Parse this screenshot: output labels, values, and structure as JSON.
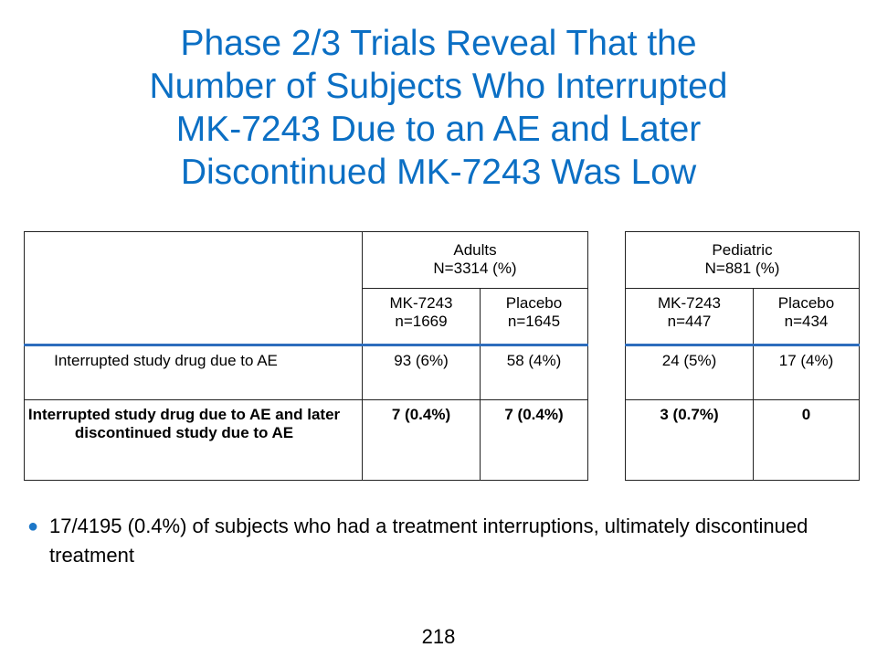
{
  "title_lines": [
    "Phase 2/3 Trials Reveal That the",
    "Number of Subjects Who Interrupted",
    "MK-7243 Due to an AE and Later",
    "Discontinued MK-7243 Was Low"
  ],
  "table": {
    "groups": [
      {
        "line1": "Adults",
        "line2": "N=3314 (%)"
      },
      {
        "line1": "Pediatric",
        "line2": "N=881 (%)"
      }
    ],
    "subheads": [
      {
        "line1": "MK-7243",
        "line2": "n=1669"
      },
      {
        "line1": "Placebo",
        "line2": "n=1645"
      },
      {
        "line1": "MK-7243",
        "line2": "n=447"
      },
      {
        "line1": "Placebo",
        "line2": "n=434"
      }
    ],
    "rows": [
      {
        "label": "Interrupted study drug due to AE",
        "values": [
          "93 (6%)",
          "58 (4%)",
          "24 (5%)",
          "17 (4%)"
        ]
      },
      {
        "label": "Interrupted study drug due to AE and later discontinued study due to AE",
        "values": [
          "7 (0.4%)",
          "7 (0.4%)",
          "3 (0.7%)",
          "0"
        ]
      }
    ]
  },
  "bullet": "17/4195 (0.4%) of subjects who had a treatment interruptions, ultimately discontinued treatment",
  "page_number": "218",
  "colors": {
    "title": "#0b6fc4",
    "rule": "#2d6dbd",
    "bullet_dot": "#1d77c8"
  }
}
